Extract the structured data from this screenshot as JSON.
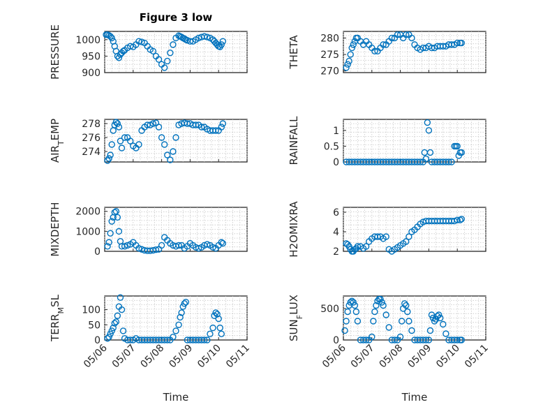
{
  "figure": {
    "title": "Figure 3 low",
    "xlabel": "Time",
    "x_ticks": [
      "05/06",
      "05/07",
      "05/08",
      "05/09",
      "05/10",
      "05/11"
    ]
  },
  "colors": {
    "series": "#0072BD",
    "axis": "#262626",
    "grid": "#c8c8c8"
  },
  "chart_data": [
    {
      "type": "scatter",
      "ylabel": "PRESSURE",
      "ylim": [
        900,
        1025
      ],
      "yticks": [
        "900",
        "950",
        "1000"
      ],
      "xlim": [
        0,
        5
      ],
      "grid": true,
      "x": [
        0.05,
        0.1,
        0.15,
        0.2,
        0.25,
        0.3,
        0.35,
        0.4,
        0.45,
        0.5,
        0.55,
        0.6,
        0.65,
        0.7,
        0.8,
        0.9,
        1.0,
        1.1,
        1.2,
        1.3,
        1.4,
        1.5,
        1.6,
        1.7,
        1.8,
        1.9,
        2.0,
        2.1,
        2.2,
        2.3,
        2.4,
        2.5,
        2.6,
        2.65,
        2.7,
        2.75,
        2.8,
        2.85,
        2.9,
        3.0,
        3.1,
        3.2,
        3.3,
        3.4,
        3.5,
        3.6,
        3.7,
        3.8,
        3.85,
        3.9,
        3.95,
        4.0,
        4.05,
        4.1,
        4.15
      ],
      "y": [
        1015,
        1015,
        1013,
        1010,
        1005,
        995,
        980,
        965,
        950,
        945,
        955,
        960,
        965,
        968,
        975,
        980,
        978,
        985,
        995,
        993,
        990,
        980,
        970,
        965,
        950,
        940,
        925,
        915,
        935,
        960,
        985,
        1005,
        1012,
        1010,
        1008,
        1005,
        1003,
        1000,
        998,
        995,
        995,
        1000,
        1005,
        1008,
        1010,
        1008,
        1005,
        1000,
        995,
        990,
        985,
        980,
        978,
        985,
        995
      ]
    },
    {
      "type": "scatter",
      "ylabel": "THETA",
      "ylim": [
        269.5,
        282
      ],
      "yticks": [
        "270",
        "275",
        "280"
      ],
      "xlim": [
        0,
        5
      ],
      "grid": true,
      "x": [
        0.1,
        0.15,
        0.2,
        0.25,
        0.3,
        0.35,
        0.4,
        0.45,
        0.5,
        0.6,
        0.7,
        0.8,
        0.9,
        1.0,
        1.1,
        1.2,
        1.3,
        1.4,
        1.5,
        1.6,
        1.7,
        1.8,
        1.9,
        2.0,
        2.1,
        2.2,
        2.3,
        2.4,
        2.5,
        2.6,
        2.7,
        2.8,
        2.9,
        3.0,
        3.1,
        3.2,
        3.3,
        3.4,
        3.5,
        3.6,
        3.7,
        3.8,
        3.9,
        4.0,
        4.1,
        4.15
      ],
      "y": [
        271,
        272,
        273,
        275,
        277,
        278,
        279,
        280,
        280,
        279,
        278,
        279,
        278,
        277,
        276,
        276,
        277,
        278,
        278,
        279,
        280,
        280,
        281,
        281,
        280,
        281,
        281,
        280,
        278,
        277,
        276.5,
        277,
        277,
        277.5,
        277,
        277,
        277.5,
        277.5,
        277.5,
        277.5,
        278,
        278,
        278,
        278.5,
        278.5,
        278.5
      ]
    },
    {
      "type": "scatter",
      "ylabel": "AIR_TEMP",
      "ylim": [
        272.5,
        278.6
      ],
      "yticks": [
        "274",
        "276",
        "278"
      ],
      "xlim": [
        0,
        5
      ],
      "grid": true,
      "x": [
        0.1,
        0.15,
        0.2,
        0.25,
        0.3,
        0.35,
        0.4,
        0.45,
        0.5,
        0.55,
        0.6,
        0.7,
        0.8,
        0.9,
        1.0,
        1.1,
        1.2,
        1.3,
        1.4,
        1.5,
        1.6,
        1.7,
        1.8,
        1.9,
        2.0,
        2.1,
        2.2,
        2.3,
        2.4,
        2.5,
        2.6,
        2.7,
        2.8,
        2.9,
        3.0,
        3.1,
        3.2,
        3.3,
        3.4,
        3.5,
        3.6,
        3.7,
        3.8,
        3.9,
        4.0,
        4.1,
        4.15
      ],
      "y": [
        272.7,
        273,
        273.5,
        275,
        277,
        277.8,
        278.2,
        278,
        277.5,
        275.5,
        274.5,
        276,
        276,
        275.5,
        274.8,
        274.5,
        275,
        277,
        277.5,
        277.8,
        277.8,
        278,
        278.1,
        277.5,
        276,
        275,
        273.5,
        272.8,
        274,
        276,
        277.8,
        278,
        278.1,
        278,
        278,
        277.8,
        277.8,
        277.8,
        277.5,
        277.5,
        277.2,
        277,
        277,
        277,
        277,
        277.5,
        278
      ]
    },
    {
      "type": "scatter",
      "ylabel": "RAINFALL",
      "ylim": [
        0,
        1.35
      ],
      "yticks": [
        "0",
        "0.5",
        "1"
      ],
      "xlim": [
        0,
        5
      ],
      "grid": true,
      "x": [
        0.1,
        0.2,
        0.3,
        0.4,
        0.5,
        0.6,
        0.7,
        0.8,
        0.9,
        1.0,
        1.1,
        1.2,
        1.3,
        1.4,
        1.5,
        1.6,
        1.7,
        1.8,
        1.9,
        2.0,
        2.1,
        2.2,
        2.3,
        2.4,
        2.5,
        2.6,
        2.7,
        2.8,
        2.85,
        2.9,
        2.95,
        3.0,
        3.05,
        3.1,
        3.2,
        3.3,
        3.4,
        3.5,
        3.6,
        3.7,
        3.8,
        3.9,
        3.95,
        4.0,
        4.05,
        4.1,
        4.15
      ],
      "y": [
        0,
        0,
        0,
        0,
        0,
        0,
        0,
        0,
        0,
        0,
        0,
        0,
        0,
        0,
        0,
        0,
        0,
        0,
        0,
        0,
        0,
        0,
        0,
        0,
        0,
        0,
        0,
        0,
        0.3,
        0.1,
        1.25,
        1.0,
        0.3,
        0,
        0,
        0,
        0,
        0,
        0,
        0,
        0,
        0.5,
        0.5,
        0.5,
        0.2,
        0.3,
        0.3
      ]
    },
    {
      "type": "scatter",
      "ylabel": "MIXDEPTH",
      "ylim": [
        0,
        2200
      ],
      "yticks": [
        "0",
        "1000",
        "2000"
      ],
      "xlim": [
        0,
        5
      ],
      "grid": true,
      "x": [
        0.1,
        0.15,
        0.2,
        0.25,
        0.3,
        0.35,
        0.4,
        0.45,
        0.5,
        0.55,
        0.6,
        0.7,
        0.8,
        0.9,
        1.0,
        1.1,
        1.2,
        1.3,
        1.4,
        1.5,
        1.6,
        1.7,
        1.8,
        1.9,
        2.0,
        2.1,
        2.2,
        2.3,
        2.4,
        2.5,
        2.6,
        2.7,
        2.8,
        2.9,
        3.0,
        3.1,
        3.2,
        3.3,
        3.4,
        3.5,
        3.6,
        3.7,
        3.8,
        3.9,
        4.0,
        4.1,
        4.15
      ],
      "y": [
        250,
        450,
        900,
        1500,
        1700,
        1950,
        2000,
        1700,
        1000,
        500,
        250,
        250,
        300,
        350,
        450,
        300,
        150,
        100,
        50,
        30,
        30,
        50,
        80,
        100,
        300,
        700,
        550,
        400,
        300,
        250,
        300,
        300,
        150,
        250,
        400,
        300,
        200,
        150,
        200,
        300,
        350,
        300,
        200,
        150,
        300,
        450,
        400
      ]
    },
    {
      "type": "scatter",
      "ylabel": "H2OMIXRA",
      "ylim": [
        2,
        6.5
      ],
      "yticks": [
        "2",
        "4",
        "6"
      ],
      "xlim": [
        0,
        5
      ],
      "grid": true,
      "x": [
        0.1,
        0.15,
        0.2,
        0.25,
        0.3,
        0.35,
        0.4,
        0.45,
        0.5,
        0.6,
        0.7,
        0.8,
        0.9,
        1.0,
        1.1,
        1.2,
        1.3,
        1.4,
        1.5,
        1.6,
        1.7,
        1.8,
        1.9,
        2.0,
        2.1,
        2.2,
        2.3,
        2.4,
        2.5,
        2.6,
        2.7,
        2.8,
        2.9,
        3.0,
        3.1,
        3.2,
        3.3,
        3.4,
        3.5,
        3.6,
        3.7,
        3.8,
        3.9,
        4.0,
        4.1,
        4.15
      ],
      "y": [
        2.8,
        2.7,
        2.5,
        2.2,
        2.0,
        2.0,
        2.2,
        2.3,
        2.5,
        2.5,
        2.3,
        2.5,
        3.0,
        3.3,
        3.5,
        3.5,
        3.5,
        3.3,
        3.5,
        2.2,
        2.0,
        2.2,
        2.4,
        2.6,
        2.8,
        3.0,
        3.5,
        4.0,
        4.2,
        4.5,
        4.8,
        5.0,
        5.1,
        5.1,
        5.1,
        5.1,
        5.1,
        5.1,
        5.1,
        5.1,
        5.1,
        5.1,
        5.1,
        5.2,
        5.2,
        5.3
      ]
    },
    {
      "type": "scatter",
      "ylabel": "TERR_MSL",
      "ylim": [
        0,
        145
      ],
      "yticks": [
        "0",
        "50",
        "100"
      ],
      "xlim": [
        0,
        5
      ],
      "grid": true,
      "x": [
        0.1,
        0.15,
        0.2,
        0.25,
        0.3,
        0.35,
        0.4,
        0.45,
        0.5,
        0.55,
        0.6,
        0.65,
        0.7,
        0.8,
        0.9,
        1.0,
        1.1,
        1.2,
        1.3,
        1.4,
        1.5,
        1.6,
        1.7,
        1.8,
        1.9,
        2.0,
        2.1,
        2.2,
        2.3,
        2.4,
        2.5,
        2.6,
        2.65,
        2.7,
        2.75,
        2.8,
        2.85,
        2.9,
        3.0,
        3.1,
        3.2,
        3.3,
        3.4,
        3.5,
        3.6,
        3.7,
        3.8,
        3.85,
        3.9,
        3.95,
        4.0,
        4.05,
        4.1
      ],
      "y": [
        5,
        10,
        20,
        30,
        40,
        55,
        60,
        80,
        110,
        140,
        100,
        30,
        5,
        0,
        0,
        0,
        5,
        0,
        0,
        0,
        0,
        0,
        0,
        0,
        0,
        0,
        0,
        0,
        0,
        10,
        30,
        50,
        75,
        90,
        110,
        120,
        125,
        0,
        0,
        0,
        0,
        0,
        0,
        0,
        0,
        20,
        40,
        80,
        90,
        85,
        70,
        40,
        20
      ]
    },
    {
      "type": "scatter",
      "ylabel": "SUN_FLUX",
      "ylim": [
        0,
        700
      ],
      "yticks": [
        "0",
        "500"
      ],
      "xlim": [
        0,
        5
      ],
      "grid": true,
      "x": [
        0.05,
        0.1,
        0.15,
        0.2,
        0.25,
        0.3,
        0.35,
        0.4,
        0.45,
        0.5,
        0.6,
        0.7,
        0.8,
        0.9,
        1.0,
        1.05,
        1.1,
        1.15,
        1.2,
        1.25,
        1.3,
        1.35,
        1.4,
        1.5,
        1.6,
        1.7,
        1.8,
        1.9,
        2.0,
        2.05,
        2.1,
        2.15,
        2.2,
        2.25,
        2.3,
        2.4,
        2.5,
        2.6,
        2.7,
        2.8,
        2.9,
        3.0,
        3.05,
        3.1,
        3.15,
        3.2,
        3.25,
        3.3,
        3.35,
        3.4,
        3.5,
        3.6,
        3.7,
        3.8,
        3.9,
        4.0,
        4.1,
        4.15
      ],
      "y": [
        150,
        300,
        450,
        550,
        600,
        620,
        600,
        550,
        450,
        300,
        0,
        0,
        0,
        0,
        50,
        300,
        450,
        550,
        620,
        650,
        650,
        600,
        550,
        400,
        200,
        0,
        0,
        0,
        50,
        300,
        500,
        580,
        550,
        450,
        300,
        150,
        0,
        0,
        0,
        0,
        0,
        0,
        150,
        400,
        350,
        300,
        330,
        380,
        400,
        350,
        250,
        100,
        0,
        0,
        0,
        0,
        0,
        0
      ]
    }
  ]
}
